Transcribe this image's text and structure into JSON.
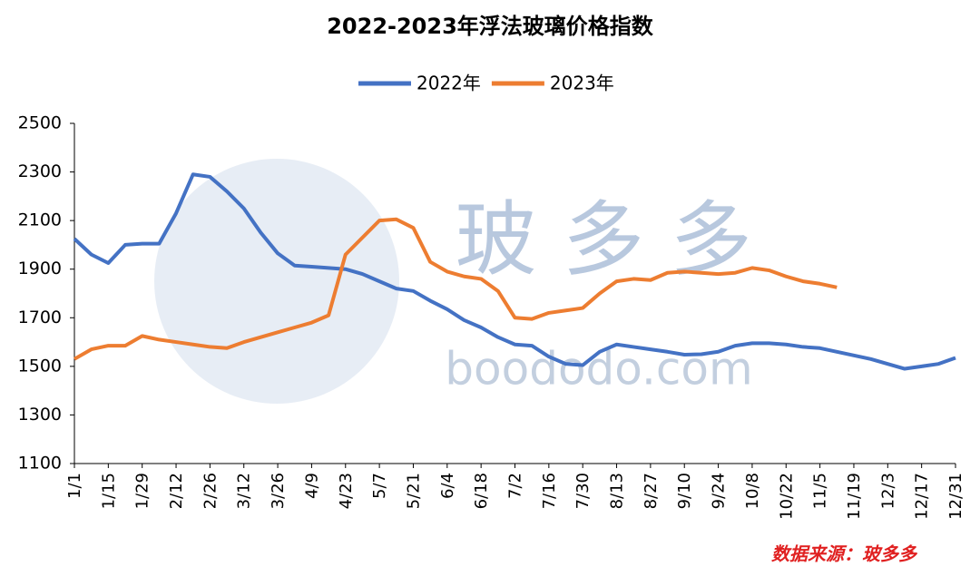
{
  "chart_data": {
    "type": "line",
    "title": "2022-2023年浮法玻璃价格指数",
    "categories": [
      "1/1",
      null,
      "1/15",
      null,
      "1/29",
      null,
      "2/12",
      null,
      "2/26",
      null,
      "3/12",
      null,
      "3/26",
      null,
      "4/9",
      null,
      "4/23",
      null,
      "5/7",
      null,
      "5/21",
      null,
      "6/4",
      null,
      "6/18",
      null,
      "7/2",
      null,
      "7/16",
      null,
      "7/30",
      null,
      "8/13",
      null,
      "8/27",
      null,
      "9/10",
      null,
      "9/24",
      null,
      "10/8",
      null,
      "10/22",
      null,
      "11/5",
      null,
      "11/19",
      null,
      "12/3",
      null,
      "12/17",
      null,
      "12/31"
    ],
    "series": [
      {
        "name": "2022年",
        "color": "#4472c4",
        "values": [
          2025,
          1960,
          1925,
          2000,
          2005,
          2005,
          2130,
          2290,
          2280,
          2220,
          2150,
          2050,
          1965,
          1915,
          1910,
          1905,
          1900,
          1880,
          1850,
          1820,
          1810,
          1770,
          1735,
          1690,
          1660,
          1620,
          1590,
          1585,
          1540,
          1510,
          1505,
          1560,
          1590,
          1580,
          1570,
          1560,
          1548,
          1550,
          1560,
          1585,
          1595,
          1595,
          1590,
          1580,
          1575,
          1560,
          1545,
          1530,
          1510,
          1490,
          1500,
          1510,
          1535
        ]
      },
      {
        "name": "2023年",
        "color": "#ed7d31",
        "values": [
          1530,
          1570,
          1585,
          1585,
          1625,
          1610,
          1600,
          1590,
          1580,
          1575,
          1600,
          1620,
          1640,
          1660,
          1680,
          1710,
          1960,
          2030,
          2100,
          2105,
          2070,
          1930,
          1890,
          1870,
          1860,
          1810,
          1700,
          1695,
          1720,
          1730,
          1740,
          1800,
          1850,
          1860,
          1855,
          1885,
          1890,
          1885,
          1880,
          1885,
          1905,
          1895,
          1870,
          1850,
          1840,
          1825,
          null,
          null,
          null,
          null,
          null,
          null,
          null
        ]
      }
    ],
    "ylim": [
      1100,
      2500
    ],
    "yticks": [
      1100,
      1300,
      1500,
      1700,
      1900,
      2100,
      2300,
      2500
    ],
    "legend": "top",
    "grid": false,
    "watermark": "玻 多 多",
    "watermark_url": "boododo.com",
    "source": "数据来源：玻多多"
  }
}
